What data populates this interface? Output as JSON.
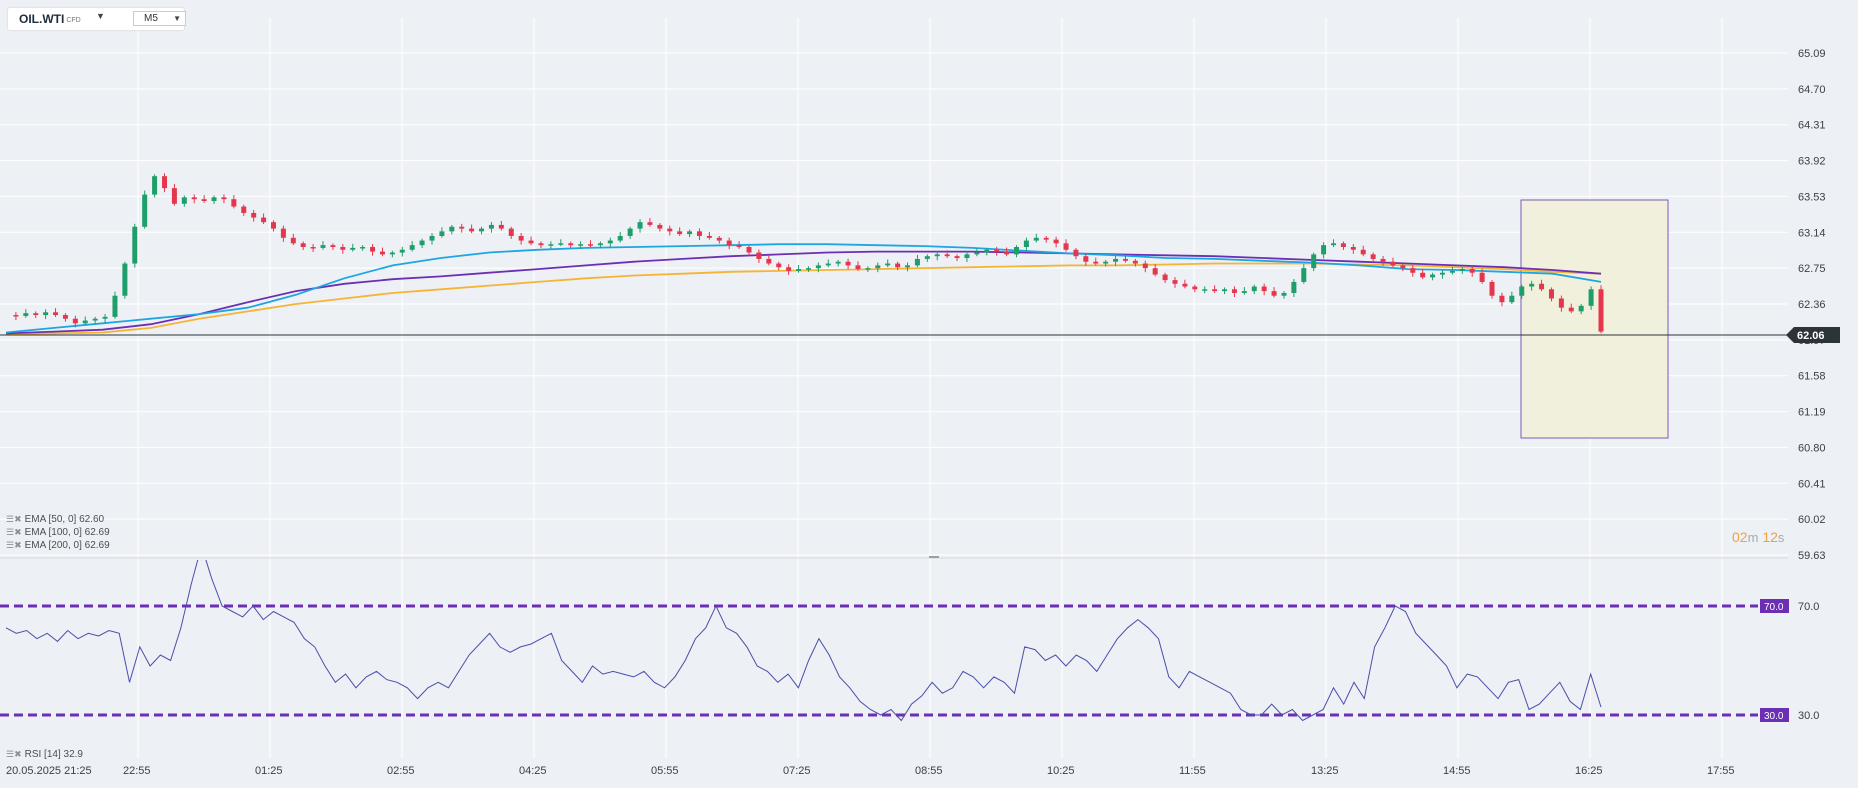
{
  "instrument": {
    "symbol": "OIL.WTI",
    "type": "CFD",
    "timeframe": "M5",
    "caret_icon": "triangle-down-icon"
  },
  "countdown": {
    "minutes": "02",
    "m": "m",
    "seconds": "12",
    "s": "s"
  },
  "price_axis": {
    "ticks": [
      "65.09",
      "64.70",
      "64.31",
      "63.92",
      "63.53",
      "63.14",
      "62.75",
      "62.36",
      "61.97",
      "61.58",
      "61.19",
      "60.80",
      "60.41",
      "60.02",
      "59.63"
    ]
  },
  "current_price": {
    "label": "62.06",
    "value": 62.06
  },
  "rsi_axis": {
    "ticks": [
      "70.0",
      "30.0"
    ],
    "tag_70": "70.0",
    "tag_30": "30.0"
  },
  "time_axis": {
    "labels": [
      "20.05.2025  21:25",
      "22:55",
      "01:25",
      "02:55",
      "04:25",
      "05:55",
      "07:25",
      "08:55",
      "10:25",
      "11:55",
      "13:25",
      "14:55",
      "16:25",
      "17:55"
    ]
  },
  "indicators": {
    "ema50": {
      "label": "EMA [50,  0]  62.60",
      "color": "#1ea6e3"
    },
    "ema100": {
      "label": "EMA [100,  0]  62.69",
      "color": "#6c2fb4"
    },
    "ema200": {
      "label": "EMA [200,  0]  62.69",
      "color": "#f5b534"
    },
    "rsi": {
      "label": "RSI [14]  32.9",
      "color": "#4a4fa8"
    }
  },
  "colors": {
    "up": "#1e9e6a",
    "down": "#e6364d",
    "grid": "#ffffff",
    "text": "#3c4048",
    "rsi_band": "#6c2fb4",
    "highlight_fill": "#f1f0dc",
    "highlight_border": "#7b5bb3"
  },
  "chart_data": {
    "type": "candlestick",
    "ylim": [
      59.63,
      65.09
    ],
    "price_series": [
      62.24,
      62.23,
      62.26,
      62.24,
      62.27,
      62.24,
      62.2,
      62.15,
      62.18,
      62.2,
      62.22,
      62.45,
      62.8,
      63.2,
      63.55,
      63.75,
      63.62,
      63.45,
      63.52,
      63.5,
      63.48,
      63.52,
      63.5,
      63.42,
      63.35,
      63.3,
      63.25,
      63.18,
      63.08,
      63.02,
      62.98,
      62.97,
      63.0,
      62.98,
      62.95,
      62.97,
      62.98,
      62.93,
      62.9,
      62.92,
      62.95,
      63.0,
      63.05,
      63.1,
      63.15,
      63.2,
      63.18,
      63.15,
      63.18,
      63.22,
      63.18,
      63.1,
      63.05,
      63.02,
      63.0,
      63.01,
      63.02,
      63.0,
      63.01,
      63.0,
      63.02,
      63.05,
      63.1,
      63.18,
      63.25,
      63.22,
      63.18,
      63.15,
      63.12,
      63.15,
      63.1,
      63.08,
      63.05,
      63.0,
      62.98,
      62.92,
      62.85,
      62.8,
      62.76,
      62.72,
      62.74,
      62.75,
      62.78,
      62.8,
      62.82,
      62.78,
      62.74,
      62.75,
      62.78,
      62.8,
      62.76,
      62.78,
      62.85,
      62.88,
      62.9,
      62.88,
      62.86,
      62.9,
      62.92,
      62.95,
      62.93,
      62.9,
      62.98,
      63.05,
      63.08,
      63.06,
      63.02,
      62.95,
      62.88,
      62.82,
      62.8,
      62.82,
      62.85,
      62.83,
      62.8,
      62.75,
      62.68,
      62.62,
      62.58,
      62.55,
      62.52,
      62.52,
      62.5,
      62.52,
      62.48,
      62.5,
      62.55,
      62.5,
      62.45,
      62.48,
      62.6,
      62.75,
      62.9,
      63.0,
      63.02,
      62.98,
      62.95,
      62.9,
      62.85,
      62.82,
      62.78,
      62.75,
      62.7,
      62.65,
      62.68,
      62.7,
      62.72,
      62.74,
      62.7,
      62.6,
      62.45,
      62.38,
      62.45,
      62.55,
      62.58,
      62.52,
      62.42,
      62.32,
      62.28,
      62.34,
      62.52,
      62.06
    ],
    "ema50": [
      62.05,
      62.1,
      62.15,
      62.2,
      62.25,
      62.32,
      62.46,
      62.64,
      62.78,
      62.86,
      62.92,
      62.95,
      62.97,
      62.98,
      62.99,
      63.0,
      63.01,
      63.01,
      63.0,
      62.99,
      62.97,
      62.94,
      62.91,
      62.89,
      62.86,
      62.85,
      62.83,
      62.81,
      62.78,
      62.74,
      62.73,
      62.71,
      62.69,
      62.6
    ],
    "ema100": [
      62.04,
      62.06,
      62.08,
      62.14,
      62.25,
      62.38,
      62.5,
      62.58,
      62.63,
      62.66,
      62.7,
      62.74,
      62.78,
      62.82,
      62.85,
      62.88,
      62.9,
      62.92,
      62.93,
      62.93,
      62.93,
      62.92,
      62.91,
      62.9,
      62.89,
      62.88,
      62.86,
      62.84,
      62.82,
      62.8,
      62.78,
      62.76,
      62.73,
      62.69
    ],
    "ema200": [
      62.03,
      62.04,
      62.05,
      62.1,
      62.2,
      62.28,
      62.36,
      62.42,
      62.48,
      62.52,
      62.56,
      62.6,
      62.64,
      62.67,
      62.69,
      62.71,
      62.72,
      62.73,
      62.74,
      62.75,
      62.76,
      62.77,
      62.78,
      62.78,
      62.79,
      62.8,
      62.8,
      62.8,
      62.79,
      62.78,
      62.76,
      62.74,
      62.71,
      62.69
    ],
    "rsi": [
      62,
      60,
      61,
      58,
      60,
      57,
      61,
      58,
      60,
      59,
      61,
      60,
      42,
      55,
      48,
      52,
      50,
      62,
      78,
      92,
      80,
      70,
      68,
      66,
      70,
      65,
      68,
      66,
      64,
      58,
      55,
      48,
      42,
      45,
      40,
      44,
      46,
      43,
      42,
      40,
      36,
      40,
      42,
      40,
      46,
      52,
      56,
      60,
      55,
      53,
      55,
      56,
      58,
      60,
      50,
      46,
      42,
      48,
      45,
      46,
      45,
      44,
      46,
      42,
      40,
      44,
      50,
      58,
      62,
      70,
      62,
      60,
      55,
      48,
      46,
      42,
      45,
      40,
      50,
      58,
      52,
      44,
      40,
      35,
      32,
      30,
      32,
      28,
      34,
      37,
      42,
      38,
      40,
      46,
      44,
      40,
      44,
      42,
      38,
      55,
      54,
      50,
      52,
      48,
      52,
      50,
      46,
      52,
      58,
      62,
      65,
      62,
      58,
      44,
      40,
      46,
      44,
      42,
      40,
      38,
      32,
      30,
      30,
      34,
      30,
      32,
      28,
      30,
      32,
      40,
      34,
      42,
      36,
      55,
      62,
      70,
      68,
      60,
      56,
      52,
      48,
      40,
      45,
      44,
      40,
      36,
      42,
      43,
      32,
      34,
      38,
      42,
      35,
      32,
      45,
      32.9
    ],
    "rsi_levels": [
      70,
      30
    ]
  }
}
